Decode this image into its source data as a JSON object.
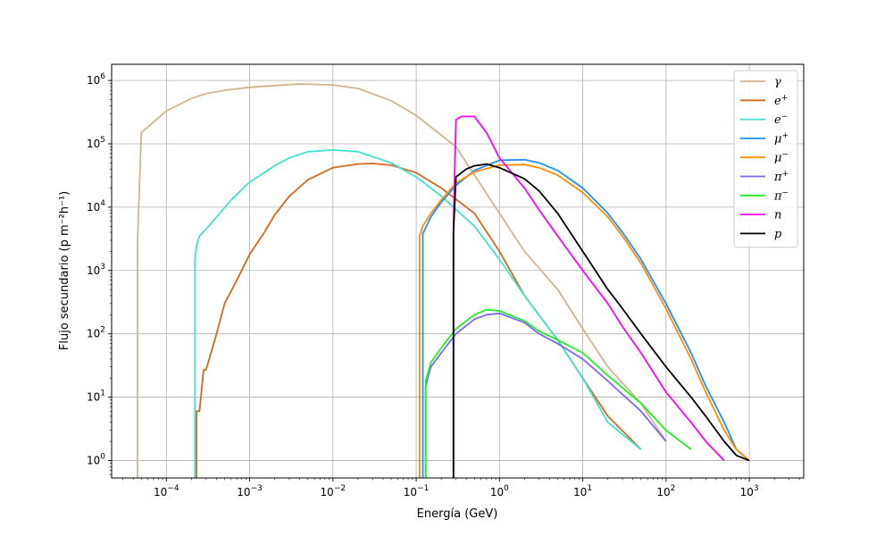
{
  "chart_data": {
    "type": "line",
    "x_scale": "log",
    "y_scale": "log",
    "xlabel": "Energía (GeV)",
    "ylabel": "Flujo secundario (p m⁻²h⁻¹)",
    "xlim": [
      2.2e-05,
      4500
    ],
    "ylim": [
      0.53,
      1800000
    ],
    "x_ticks": [
      {
        "value": 0.0001,
        "mantissa": "10",
        "exponent": "−4"
      },
      {
        "value": 0.001,
        "mantissa": "10",
        "exponent": "−3"
      },
      {
        "value": 0.01,
        "mantissa": "10",
        "exponent": "−2"
      },
      {
        "value": 0.1,
        "mantissa": "10",
        "exponent": "−1"
      },
      {
        "value": 1,
        "mantissa": "10",
        "exponent": "0"
      },
      {
        "value": 10,
        "mantissa": "10",
        "exponent": "1"
      },
      {
        "value": 100,
        "mantissa": "10",
        "exponent": "2"
      },
      {
        "value": 1000,
        "mantissa": "10",
        "exponent": "3"
      }
    ],
    "y_ticks": [
      {
        "value": 1,
        "mantissa": "10",
        "exponent": "0"
      },
      {
        "value": 10,
        "mantissa": "10",
        "exponent": "1"
      },
      {
        "value": 100,
        "mantissa": "10",
        "exponent": "2"
      },
      {
        "value": 1000,
        "mantissa": "10",
        "exponent": "3"
      },
      {
        "value": 10000,
        "mantissa": "10",
        "exponent": "4"
      },
      {
        "value": 100000,
        "mantissa": "10",
        "exponent": "5"
      },
      {
        "value": 1000000,
        "mantissa": "10",
        "exponent": "6"
      }
    ],
    "grid": true,
    "legend_position": "top-right",
    "series": [
      {
        "name": "γ",
        "sup": "",
        "color": "#D2B48C",
        "x": [
          4.5e-05,
          5e-05,
          7e-05,
          0.0001,
          0.0002,
          0.0003,
          0.0005,
          0.001,
          0.002,
          0.004,
          0.01,
          0.02,
          0.05,
          0.1,
          0.3,
          1,
          2,
          5,
          10,
          20,
          50,
          100
        ],
        "y": [
          2800,
          150000,
          220000,
          330000,
          520000,
          620000,
          700000,
          780000,
          830000,
          880000,
          850000,
          750000,
          480000,
          280000,
          90000,
          8000,
          2000,
          500,
          120,
          30,
          8,
          2
        ]
      },
      {
        "name": "e",
        "sup": "+",
        "color": "#D2691E",
        "x": [
          0.00023,
          0.00025,
          0.00028,
          0.0003,
          0.0004,
          0.0005,
          0.0007,
          0.001,
          0.0015,
          0.002,
          0.003,
          0.005,
          0.01,
          0.02,
          0.03,
          0.05,
          0.1,
          0.2,
          0.5,
          1,
          2,
          5,
          10,
          20,
          50
        ],
        "y": [
          6,
          6,
          27,
          27,
          100,
          300,
          700,
          1800,
          4000,
          7500,
          15000,
          27000,
          42000,
          48000,
          49000,
          46000,
          35000,
          20000,
          8000,
          2000,
          400,
          80,
          20,
          5,
          1.5
        ]
      },
      {
        "name": "e",
        "sup": "−",
        "color": "#40E0D0",
        "x": [
          0.00022,
          0.00023,
          0.00025,
          0.0003,
          0.0004,
          0.0006,
          0.001,
          0.0015,
          0.002,
          0.003,
          0.005,
          0.01,
          0.02,
          0.05,
          0.1,
          0.2,
          0.5,
          1,
          2,
          5,
          10,
          20,
          50
        ],
        "y": [
          1500,
          2500,
          3500,
          4500,
          7000,
          13000,
          25000,
          35000,
          45000,
          60000,
          75000,
          80000,
          75000,
          50000,
          30000,
          15000,
          5000,
          1500,
          400,
          80,
          20,
          4,
          1.5
        ]
      },
      {
        "name": "μ",
        "sup": "+",
        "color": "#1E90FF",
        "x": [
          0.12,
          0.15,
          0.2,
          0.3,
          0.5,
          1,
          2,
          3,
          5,
          10,
          20,
          30,
          50,
          100,
          200,
          300,
          500,
          700,
          1000
        ],
        "y": [
          3800,
          7000,
          12000,
          22000,
          38000,
          55000,
          56000,
          50000,
          38000,
          20000,
          8000,
          4000,
          1500,
          300,
          50,
          15,
          4,
          1.5,
          1
        ]
      },
      {
        "name": "μ",
        "sup": "−",
        "color": "#FF8C00",
        "x": [
          0.11,
          0.12,
          0.15,
          0.2,
          0.3,
          0.5,
          1,
          2,
          3,
          5,
          10,
          20,
          30,
          50,
          100,
          200,
          300,
          500,
          700,
          1000
        ],
        "y": [
          3500,
          5000,
          8000,
          13000,
          24000,
          36000,
          46000,
          47000,
          42000,
          32000,
          17000,
          7000,
          3500,
          1300,
          250,
          40,
          12,
          3,
          1.5,
          1
        ]
      },
      {
        "name": "π",
        "sup": "+",
        "color": "#7B68EE",
        "x": [
          0.13,
          0.15,
          0.2,
          0.3,
          0.5,
          0.7,
          1,
          2,
          3,
          5,
          10,
          20,
          50,
          100
        ],
        "y": [
          15,
          30,
          50,
          100,
          170,
          200,
          210,
          150,
          100,
          70,
          40,
          18,
          6,
          2
        ]
      },
      {
        "name": "π",
        "sup": "−",
        "color": "#22EE22",
        "x": [
          0.13,
          0.15,
          0.2,
          0.3,
          0.5,
          0.7,
          1,
          2,
          3,
          5,
          10,
          20,
          50,
          100,
          200
        ],
        "y": [
          18,
          35,
          60,
          120,
          200,
          240,
          230,
          160,
          110,
          80,
          50,
          22,
          8,
          3,
          1.5
        ]
      },
      {
        "name": "n",
        "sup": "",
        "color": "#FF00FF",
        "x": [
          0.28,
          0.3,
          0.35,
          0.5,
          0.7,
          1,
          2,
          3,
          5,
          10,
          20,
          30,
          50,
          100,
          200,
          300,
          500
        ],
        "y": [
          5000,
          240000,
          270000,
          270000,
          150000,
          60000,
          20000,
          9000,
          3500,
          1000,
          300,
          130,
          50,
          12,
          4,
          2,
          1
        ]
      },
      {
        "name": "p",
        "sup": "",
        "color": "#000000",
        "x": [
          0.28,
          0.3,
          0.4,
          0.5,
          0.7,
          1,
          2,
          3,
          5,
          10,
          20,
          30,
          50,
          100,
          200,
          300,
          500,
          700,
          1000
        ],
        "y": [
          4000,
          30000,
          40000,
          45000,
          48000,
          42000,
          28000,
          18000,
          8000,
          2000,
          500,
          250,
          100,
          30,
          10,
          5,
          2,
          1.2,
          1
        ]
      }
    ]
  }
}
